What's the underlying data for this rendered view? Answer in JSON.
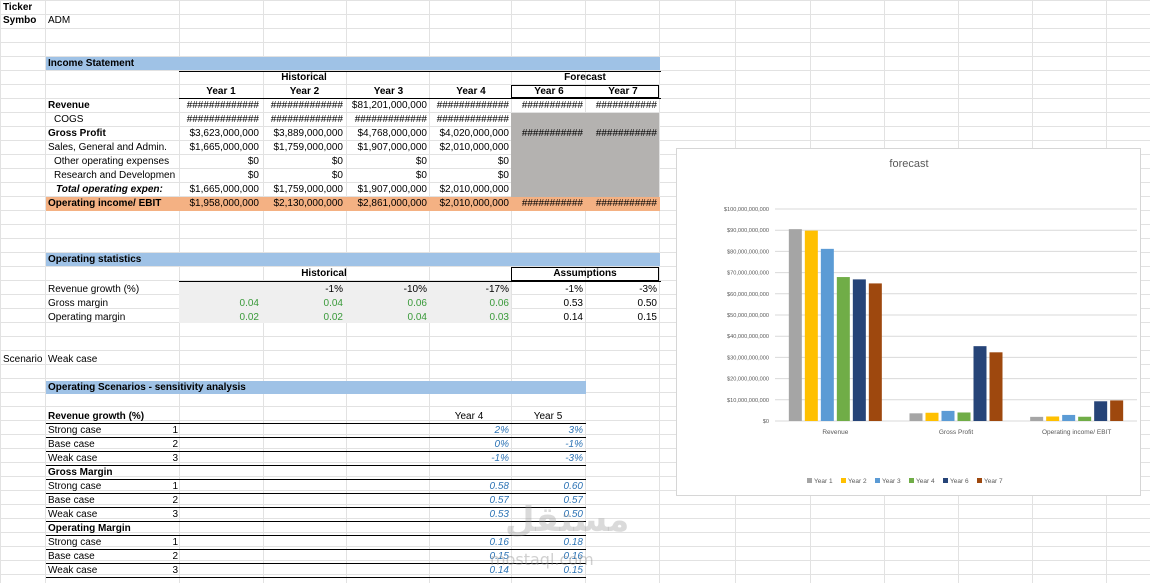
{
  "ticker": {
    "label1": "Ticker",
    "label2": "Symbo",
    "value": "ADM"
  },
  "income": {
    "title": "Income Statement",
    "historical_label": "Historical",
    "forecast_label": "Forecast",
    "years": [
      "Year 1",
      "Year 2",
      "Year 3",
      "Year 4",
      "Year 6",
      "Year 7"
    ],
    "rows": [
      {
        "label": "Revenue",
        "bold": true,
        "values": [
          "#############",
          "#############",
          "$81,201,000,000",
          "#############",
          "###########",
          "###########"
        ]
      },
      {
        "label": "COGS",
        "bold": false,
        "values": [
          "#############",
          "#############",
          "#############",
          "#############",
          "",
          ""
        ]
      },
      {
        "label": "Gross Profit",
        "bold": true,
        "values": [
          "$3,623,000,000",
          "$3,889,000,000",
          "$4,768,000,000",
          "$4,020,000,000",
          "###########",
          "###########"
        ]
      },
      {
        "label": "Sales, General and Admin.",
        "bold": false,
        "values": [
          "$1,665,000,000",
          "$1,759,000,000",
          "$1,907,000,000",
          "$2,010,000,000",
          "",
          ""
        ]
      },
      {
        "label": "Other operating expenses",
        "bold": false,
        "values": [
          "$0",
          "$0",
          "$0",
          "$0",
          "",
          ""
        ]
      },
      {
        "label": "Research and Developmen",
        "bold": false,
        "values": [
          "$0",
          "$0",
          "$0",
          "$0",
          "",
          ""
        ]
      },
      {
        "label": "Total operating expen:",
        "bold": true,
        "values": [
          "$1,665,000,000",
          "$1,759,000,000",
          "$1,907,000,000",
          "$2,010,000,000",
          "",
          ""
        ]
      },
      {
        "label": "Operating income/ EBIT",
        "bold": true,
        "values": [
          "$1,958,000,000",
          "$2,130,000,000",
          "$2,861,000,000",
          "$2,010,000,000",
          "###########",
          "###########"
        ]
      }
    ]
  },
  "opstats": {
    "title": "Operating statistics",
    "historical_label": "Historical",
    "assumptions_label": "Assumptions",
    "rows": [
      {
        "label": "Revenue growth (%)",
        "values": [
          "",
          "-1%",
          "-10%",
          "-17%",
          "-1%",
          "-3%"
        ]
      },
      {
        "label": "Gross margin",
        "values": [
          "0.04",
          "0.04",
          "0.06",
          "0.06",
          "0.53",
          "0.50"
        ]
      },
      {
        "label": "Operating margin",
        "values": [
          "0.02",
          "0.02",
          "0.04",
          "0.03",
          "0.14",
          "0.15"
        ]
      }
    ]
  },
  "scenario": {
    "label": "Scenario",
    "value": "Weak case"
  },
  "sensitivity": {
    "title": "Operating Scenarios - sensitivity analysis",
    "col_year4": "Year 4",
    "col_year5": "Year 5",
    "groups": [
      {
        "title": "Revenue growth (%)",
        "rows": [
          {
            "label": "Strong case",
            "n": "1",
            "y4": "2%",
            "y5": "3%"
          },
          {
            "label": "Base case",
            "n": "2",
            "y4": "0%",
            "y5": "-1%"
          },
          {
            "label": "Weak case",
            "n": "3",
            "y4": "-1%",
            "y5": "-3%"
          }
        ]
      },
      {
        "title": "Gross Margin",
        "rows": [
          {
            "label": "Strong case",
            "n": "1",
            "y4": "0.58",
            "y5": "0.60"
          },
          {
            "label": "Base case",
            "n": "2",
            "y4": "0.57",
            "y5": "0.57"
          },
          {
            "label": "Weak case",
            "n": "3",
            "y4": "0.53",
            "y5": "0.50"
          }
        ]
      },
      {
        "title": "Operating Margin",
        "rows": [
          {
            "label": "Strong case",
            "n": "1",
            "y4": "0.16",
            "y5": "0.18"
          },
          {
            "label": "Base case",
            "n": "2",
            "y4": "0.15",
            "y5": "0.16"
          },
          {
            "label": "Weak case",
            "n": "3",
            "y4": "0.14",
            "y5": "0.15"
          }
        ]
      }
    ]
  },
  "watermark": {
    "arabic": "مستقل",
    "latin": "mostaql.com"
  },
  "colors": {
    "header_blue": "#9fc2e6",
    "ebit_orange": "#f4b183",
    "grey_fill": "#b4b2b0",
    "light_grey": "#efefef"
  },
  "chart_data": {
    "type": "bar",
    "title": "forecast",
    "categories": [
      "Revenue",
      "Gross Profit",
      "Operating income/ EBIT"
    ],
    "ylim": [
      0,
      100000000000
    ],
    "yticks": [
      0,
      10000000000,
      20000000000,
      30000000000,
      40000000000,
      50000000000,
      60000000000,
      70000000000,
      80000000000,
      90000000000,
      100000000000
    ],
    "ytick_labels": [
      "$0",
      "$10,000,000,000",
      "$20,000,000,000",
      "$30,000,000,000",
      "$40,000,000,000",
      "$50,000,000,000",
      "$60,000,000,000",
      "$70,000,000,000",
      "$80,000,000,000",
      "$90,000,000,000",
      "$100,000,000,000"
    ],
    "grid": true,
    "legend": "bottom",
    "series": [
      {
        "name": "Year 1",
        "color": "#a5a5a5",
        "values": [
          90500000000,
          3623000000,
          1958000000
        ]
      },
      {
        "name": "Year 2",
        "color": "#ffc000",
        "values": [
          89800000000,
          3889000000,
          2130000000
        ]
      },
      {
        "name": "Year 3",
        "color": "#5b9bd5",
        "values": [
          81201000000,
          4768000000,
          2861000000
        ]
      },
      {
        "name": "Year 4",
        "color": "#70ad47",
        "values": [
          67900000000,
          4020000000,
          2010000000
        ]
      },
      {
        "name": "Year 6",
        "color": "#264478",
        "values": [
          66800000000,
          35300000000,
          9300000000
        ]
      },
      {
        "name": "Year 7",
        "color": "#9e480e",
        "values": [
          64900000000,
          32400000000,
          9700000000
        ]
      }
    ]
  }
}
